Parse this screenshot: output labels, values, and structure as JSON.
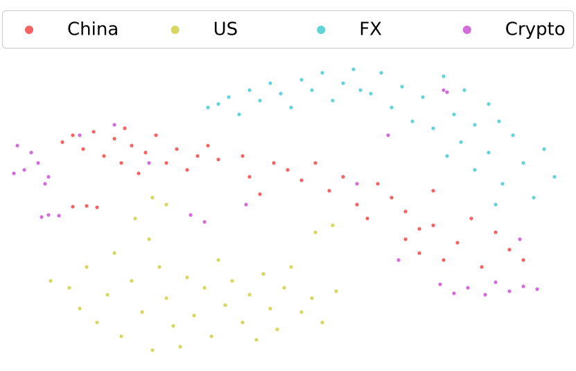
{
  "chart_data": {
    "type": "scatter",
    "xlim": [
      0,
      800
    ],
    "ylim": [
      0,
      440
    ],
    "legend": "top",
    "series": [
      {
        "name": "China",
        "color": "#f02020",
        "x": [
          75,
          90,
          105,
          120,
          135,
          150,
          160,
          175,
          185,
          195,
          210,
          225,
          240,
          255,
          270,
          285,
          300,
          165,
          90,
          110,
          125,
          335,
          345,
          360,
          380,
          400,
          420,
          440,
          460,
          480,
          500,
          515,
          530,
          550,
          570,
          590,
          610,
          570,
          590,
          610,
          625,
          645,
          665,
          680,
          700,
          720,
          740
        ],
        "y": [
          320,
          330,
          310,
          335,
          300,
          325,
          290,
          315,
          275,
          305,
          330,
          290,
          310,
          280,
          300,
          315,
          295,
          340,
          227,
          228,
          226,
          300,
          270,
          245,
          290,
          280,
          265,
          290,
          250,
          270,
          230,
          210,
          260,
          240,
          220,
          195,
          250,
          180,
          160,
          200,
          150,
          175,
          210,
          140,
          190,
          165,
          150
        ]
      },
      {
        "name": "US",
        "color": "#c4c41c",
        "x": [
          58,
          85,
          100,
          110,
          125,
          140,
          150,
          160,
          175,
          190,
          200,
          205,
          215,
          225,
          235,
          245,
          255,
          265,
          280,
          290,
          300,
          310,
          320,
          335,
          345,
          355,
          365,
          375,
          385,
          395,
          405,
          420,
          435,
          450,
          470,
          225,
          205,
          180,
          465,
          440
        ],
        "y": [
          120,
          110,
          80,
          140,
          60,
          100,
          160,
          40,
          120,
          75,
          180,
          20,
          140,
          95,
          55,
          25,
          125,
          70,
          110,
          40,
          150,
          85,
          120,
          60,
          100,
          35,
          130,
          80,
          50,
          110,
          140,
          75,
          95,
          60,
          105,
          230,
          240,
          210,
          200,
          190
        ]
      },
      {
        "name": "FX",
        "color": "#1fc0c8",
        "x": [
          285,
          300,
          315,
          330,
          345,
          360,
          375,
          390,
          405,
          420,
          435,
          450,
          465,
          480,
          495,
          505,
          520,
          535,
          550,
          565,
          580,
          595,
          610,
          625,
          640,
          655,
          670,
          690,
          705,
          630,
          650,
          670,
          690,
          710,
          725,
          740,
          755,
          770,
          785,
          700
        ],
        "y": [
          370,
          375,
          385,
          360,
          395,
          380,
          405,
          390,
          370,
          410,
          395,
          420,
          380,
          405,
          425,
          395,
          390,
          420,
          370,
          400,
          350,
          385,
          340,
          415,
          360,
          395,
          345,
          375,
          350,
          300,
          320,
          280,
          305,
          260,
          330,
          290,
          240,
          310,
          270,
          230
        ]
      },
      {
        "name": "Crypto",
        "color": "#c02cc8",
        "x": [
          10,
          20,
          30,
          5,
          40,
          50,
          55,
          45,
          55,
          70,
          100,
          150,
          200,
          260,
          280,
          340,
          500,
          545,
          625,
          630,
          560,
          620,
          640,
          660,
          685,
          700,
          720,
          740,
          760,
          735
        ],
        "y": [
          315,
          280,
          305,
          275,
          290,
          260,
          270,
          212,
          215,
          214,
          330,
          345,
          290,
          215,
          205,
          230,
          260,
          330,
          395,
          392,
          150,
          115,
          102,
          110,
          100,
          118,
          105,
          112,
          108,
          180
        ]
      }
    ]
  }
}
